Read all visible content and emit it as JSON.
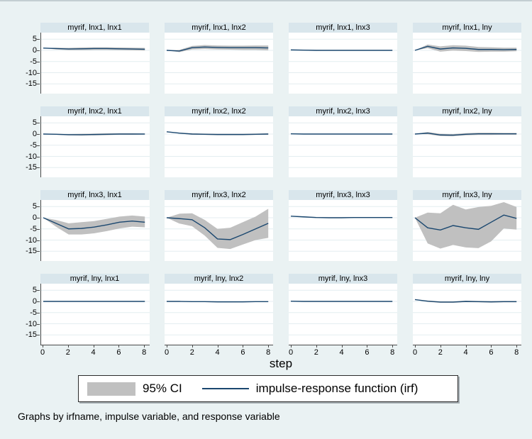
{
  "figure": {
    "xlabel": "step",
    "note": "Graphs by irfname, impulse variable, and response variable",
    "legend": {
      "ci_label": "95% CI",
      "irf_label": "impulse-response function (irf)"
    }
  },
  "colors": {
    "background": "#eaf2f3",
    "plot_background": "#ffffff",
    "gridline": "#e4edf0",
    "title_band": "#d9e6ec",
    "ci_fill": "#c0c0c0",
    "irf_line": "#1a476f",
    "axis": "#4a4a4a"
  },
  "chart_data": {
    "type": "line",
    "layout": "4x4 small multiples, shared axes",
    "x": [
      0,
      1,
      2,
      3,
      4,
      5,
      6,
      7,
      8
    ],
    "x_tick_labels": [
      "0",
      "2",
      "4",
      "6",
      "8"
    ],
    "x_tick_values": [
      0,
      2,
      4,
      6,
      8
    ],
    "y_tick_labels": [
      "5",
      "0",
      "-5",
      "-10",
      "-15"
    ],
    "y_tick_values": [
      5,
      0,
      -5,
      -10,
      -15
    ],
    "ylim": [
      -20,
      8
    ],
    "xlabel": "step",
    "legend_entries": [
      "95% CI",
      "impulse-response function (irf)"
    ],
    "legend_position": "bottom",
    "grid": true,
    "panels": [
      {
        "title": "myrif, lnx1, lnx1",
        "irf": [
          1.0,
          0.8,
          0.6,
          0.7,
          0.8,
          0.8,
          0.7,
          0.6,
          0.5
        ],
        "ci_upper": [
          1.0,
          1.2,
          1.1,
          1.3,
          1.4,
          1.4,
          1.3,
          1.2,
          1.1
        ],
        "ci_lower": [
          1.0,
          0.4,
          0.1,
          0.1,
          0.2,
          0.2,
          0.1,
          0.0,
          -0.1
        ]
      },
      {
        "title": "myrif, lnx1, lnx2",
        "irf": [
          0,
          -0.3,
          1.2,
          1.5,
          1.3,
          1.2,
          1.2,
          1.2,
          1.1
        ],
        "ci_upper": [
          0,
          0.2,
          2.0,
          2.4,
          2.2,
          2.1,
          2.1,
          2.2,
          2.2
        ],
        "ci_lower": [
          0,
          -0.8,
          0.4,
          0.6,
          0.4,
          0.3,
          0.2,
          0.2,
          0.0
        ]
      },
      {
        "title": "myrif, lnx1, lnx3",
        "irf": [
          0.2,
          0.1,
          0.0,
          0.0,
          0.0,
          0.0,
          0.0,
          0.0,
          0.0
        ],
        "ci_upper": [
          0.2,
          0.3,
          0.2,
          0.1,
          0.1,
          0.1,
          0.1,
          0.1,
          0.1
        ],
        "ci_lower": [
          0.2,
          -0.1,
          -0.2,
          -0.1,
          -0.1,
          -0.1,
          -0.1,
          -0.1,
          -0.1
        ]
      },
      {
        "title": "myrif, lnx1, lny",
        "irf": [
          0,
          1.8,
          0.6,
          1.1,
          0.9,
          0.4,
          0.4,
          0.3,
          0.4
        ],
        "ci_upper": [
          0,
          2.6,
          1.8,
          2.3,
          2.1,
          1.5,
          1.4,
          1.2,
          1.2
        ],
        "ci_lower": [
          0,
          1.0,
          -0.6,
          -0.1,
          -0.3,
          -0.7,
          -0.6,
          -0.6,
          -0.4
        ]
      },
      {
        "title": "myrif, lnx2, lnx1",
        "irf": [
          0,
          -0.1,
          -0.3,
          -0.3,
          -0.2,
          -0.1,
          0,
          0,
          0
        ],
        "ci_upper": [
          0,
          0.1,
          0.0,
          0.1,
          0.2,
          0.3,
          0.3,
          0.3,
          0.2
        ],
        "ci_lower": [
          0,
          -0.3,
          -0.6,
          -0.7,
          -0.6,
          -0.5,
          -0.3,
          -0.3,
          -0.2
        ]
      },
      {
        "title": "myrif, lnx2, lnx2",
        "irf": [
          1.0,
          0.4,
          0.0,
          -0.1,
          -0.2,
          -0.2,
          -0.2,
          -0.1,
          0.0
        ],
        "ci_upper": [
          1.0,
          0.6,
          0.3,
          0.2,
          0.1,
          0.1,
          0.1,
          0.2,
          0.3
        ],
        "ci_lower": [
          1.0,
          0.2,
          -0.3,
          -0.4,
          -0.5,
          -0.5,
          -0.5,
          -0.4,
          -0.3
        ]
      },
      {
        "title": "myrif, lnx2, lnx3",
        "irf": [
          0.1,
          0,
          0,
          0,
          0,
          0,
          0,
          0,
          0
        ],
        "ci_upper": [
          0.1,
          0.1,
          0.1,
          0.1,
          0.1,
          0.1,
          0.1,
          0.1,
          0.1
        ],
        "ci_lower": [
          0.1,
          -0.1,
          -0.1,
          -0.1,
          -0.1,
          -0.1,
          -0.1,
          -0.1,
          -0.1
        ]
      },
      {
        "title": "myrif, lnx2, lny",
        "irf": [
          0,
          0.4,
          -0.4,
          -0.5,
          -0.1,
          0.1,
          0.1,
          0.1,
          0.1
        ],
        "ci_upper": [
          0,
          0.9,
          0.1,
          0.0,
          0.4,
          0.6,
          0.6,
          0.5,
          0.5
        ],
        "ci_lower": [
          0,
          -0.1,
          -0.9,
          -1.0,
          -0.6,
          -0.4,
          -0.4,
          -0.3,
          -0.3
        ]
      },
      {
        "title": "myrif, lnx3, lnx1",
        "irf": [
          0,
          -2.5,
          -5.0,
          -4.8,
          -4.2,
          -3.2,
          -2.0,
          -1.5,
          -2.0
        ],
        "ci_upper": [
          0,
          -1.0,
          -2.5,
          -2.0,
          -1.5,
          -0.5,
          0.5,
          1.0,
          0.5
        ],
        "ci_lower": [
          0,
          -4.0,
          -7.5,
          -7.5,
          -7.0,
          -6.0,
          -4.8,
          -4.0,
          -4.3
        ]
      },
      {
        "title": "myrif, lnx3, lnx2",
        "irf": [
          0,
          -0.4,
          -0.9,
          -4.5,
          -9.5,
          -9.8,
          -7.5,
          -5.0,
          -2.5
        ],
        "ci_upper": [
          0,
          1.8,
          2.0,
          -1.0,
          -5.0,
          -4.5,
          -2.0,
          0.5,
          4.0
        ],
        "ci_lower": [
          0,
          -2.6,
          -3.8,
          -8.0,
          -13.5,
          -14.0,
          -12.0,
          -10.0,
          -9.0
        ]
      },
      {
        "title": "myrif, lnx3, lnx3",
        "irf": [
          0.7,
          0.4,
          0.1,
          0.0,
          0.0,
          0.1,
          0.1,
          0.1,
          0.1
        ],
        "ci_upper": [
          0.7,
          0.6,
          0.3,
          0.2,
          0.2,
          0.3,
          0.3,
          0.3,
          0.3
        ],
        "ci_lower": [
          0.7,
          0.2,
          -0.1,
          -0.2,
          -0.2,
          -0.1,
          -0.1,
          -0.1,
          -0.1
        ]
      },
      {
        "title": "myrif, lnx3, lny",
        "irf": [
          0,
          -4.5,
          -5.5,
          -3.5,
          -4.5,
          -5.2,
          -2.0,
          1.2,
          -0.3
        ],
        "ci_upper": [
          0,
          2.3,
          2.0,
          5.8,
          3.7,
          4.8,
          5.3,
          7.0,
          4.8
        ],
        "ci_lower": [
          0,
          -11.5,
          -13.8,
          -12.2,
          -13.3,
          -13.6,
          -10.6,
          -4.8,
          -5.3
        ]
      },
      {
        "title": "myrif, lny, lnx1",
        "irf": [
          0,
          0,
          0,
          0,
          0,
          0,
          0,
          0,
          0
        ],
        "ci_upper": [
          0,
          0.1,
          0.1,
          0.1,
          0.1,
          0.1,
          0.1,
          0.1,
          0.1
        ],
        "ci_lower": [
          0,
          -0.1,
          -0.1,
          -0.1,
          -0.1,
          -0.1,
          -0.1,
          -0.1,
          -0.1
        ]
      },
      {
        "title": "myrif, lny, lnx2",
        "irf": [
          0,
          0,
          -0.1,
          -0.1,
          -0.2,
          -0.2,
          -0.2,
          -0.1,
          -0.1
        ],
        "ci_upper": [
          0,
          0.1,
          0.0,
          0.0,
          0.0,
          0.0,
          0.0,
          0.0,
          0.0
        ],
        "ci_lower": [
          0,
          -0.1,
          -0.2,
          -0.3,
          -0.4,
          -0.4,
          -0.3,
          -0.3,
          -0.2
        ]
      },
      {
        "title": "myrif, lny, lnx3",
        "irf": [
          0.1,
          0,
          0,
          0,
          0,
          0,
          0,
          0,
          0
        ],
        "ci_upper": [
          0.1,
          0.1,
          0.1,
          0.1,
          0.1,
          0.1,
          0.1,
          0.1,
          0.1
        ],
        "ci_lower": [
          0.1,
          -0.1,
          -0.1,
          -0.1,
          -0.1,
          -0.1,
          -0.1,
          -0.1,
          -0.1
        ]
      },
      {
        "title": "myrif, lny, lny",
        "irf": [
          0.8,
          0.1,
          -0.3,
          -0.3,
          0.0,
          -0.1,
          -0.2,
          -0.1,
          -0.1
        ],
        "ci_upper": [
          0.8,
          0.4,
          0.0,
          0.0,
          0.3,
          0.2,
          0.1,
          0.2,
          0.2
        ],
        "ci_lower": [
          0.8,
          -0.2,
          -0.6,
          -0.6,
          -0.3,
          -0.4,
          -0.5,
          -0.4,
          -0.4
        ]
      }
    ]
  }
}
